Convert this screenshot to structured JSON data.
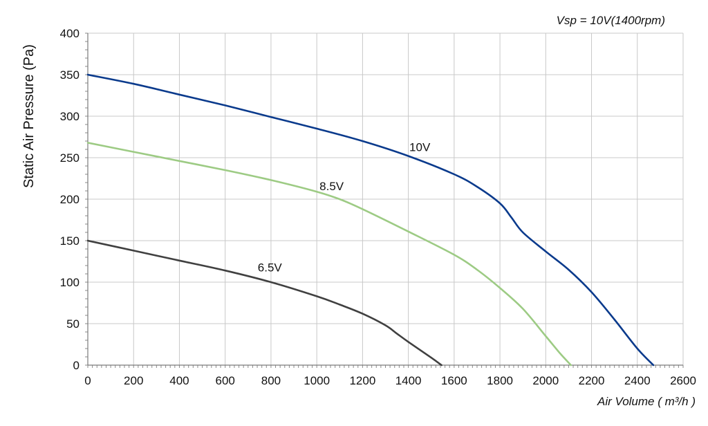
{
  "chart_data": {
    "type": "line",
    "title": "",
    "annotation": "Vsp = 10V(1400rpm)",
    "xlabel": "Air Volume ( m³/h )",
    "ylabel": "Static Air Pressure  (Pa)",
    "xlim": [
      0,
      2600
    ],
    "ylim": [
      0,
      400
    ],
    "x_ticks": [
      0,
      200,
      400,
      600,
      800,
      1000,
      1200,
      1400,
      1600,
      1800,
      2000,
      2200,
      2400,
      2600
    ],
    "y_ticks": [
      0,
      50,
      100,
      150,
      200,
      250,
      300,
      350,
      400
    ],
    "x_tick_labels": [
      "0",
      "200",
      "400",
      "600",
      "800",
      "1000",
      "1200",
      "1400",
      "1600",
      "1800",
      "2000",
      "2200",
      "2400",
      "2600"
    ],
    "y_tick_labels": [
      "0",
      "50",
      "100",
      "150",
      "200",
      "250",
      "300",
      "350",
      "400"
    ],
    "grid": true,
    "series": [
      {
        "name": "10V",
        "color": "#0a3a8c",
        "label_at": [
          1450,
          258
        ],
        "points": [
          [
            0,
            350
          ],
          [
            200,
            339
          ],
          [
            400,
            326
          ],
          [
            600,
            313
          ],
          [
            800,
            299
          ],
          [
            1000,
            285
          ],
          [
            1200,
            270
          ],
          [
            1400,
            252
          ],
          [
            1600,
            230
          ],
          [
            1700,
            215
          ],
          [
            1800,
            195
          ],
          [
            1850,
            178
          ],
          [
            1900,
            160
          ],
          [
            2000,
            137
          ],
          [
            2100,
            115
          ],
          [
            2200,
            88
          ],
          [
            2300,
            55
          ],
          [
            2400,
            20
          ],
          [
            2470,
            0
          ]
        ]
      },
      {
        "name": "8.5V",
        "color": "#9dcb84",
        "label_at": [
          1065,
          211
        ],
        "points": [
          [
            0,
            268
          ],
          [
            200,
            257
          ],
          [
            400,
            246
          ],
          [
            600,
            235
          ],
          [
            800,
            223
          ],
          [
            1000,
            209
          ],
          [
            1100,
            200
          ],
          [
            1200,
            188
          ],
          [
            1400,
            161
          ],
          [
            1600,
            133
          ],
          [
            1700,
            115
          ],
          [
            1800,
            93
          ],
          [
            1900,
            68
          ],
          [
            2000,
            35
          ],
          [
            2060,
            15
          ],
          [
            2110,
            0
          ]
        ]
      },
      {
        "name": "6.5V",
        "color": "#404040",
        "label_at": [
          795,
          113
        ],
        "points": [
          [
            0,
            150
          ],
          [
            200,
            138
          ],
          [
            400,
            126
          ],
          [
            600,
            114
          ],
          [
            800,
            100
          ],
          [
            1000,
            83
          ],
          [
            1100,
            73
          ],
          [
            1200,
            62
          ],
          [
            1300,
            48
          ],
          [
            1350,
            38
          ],
          [
            1400,
            28
          ],
          [
            1500,
            9
          ],
          [
            1545,
            0
          ]
        ]
      }
    ]
  }
}
